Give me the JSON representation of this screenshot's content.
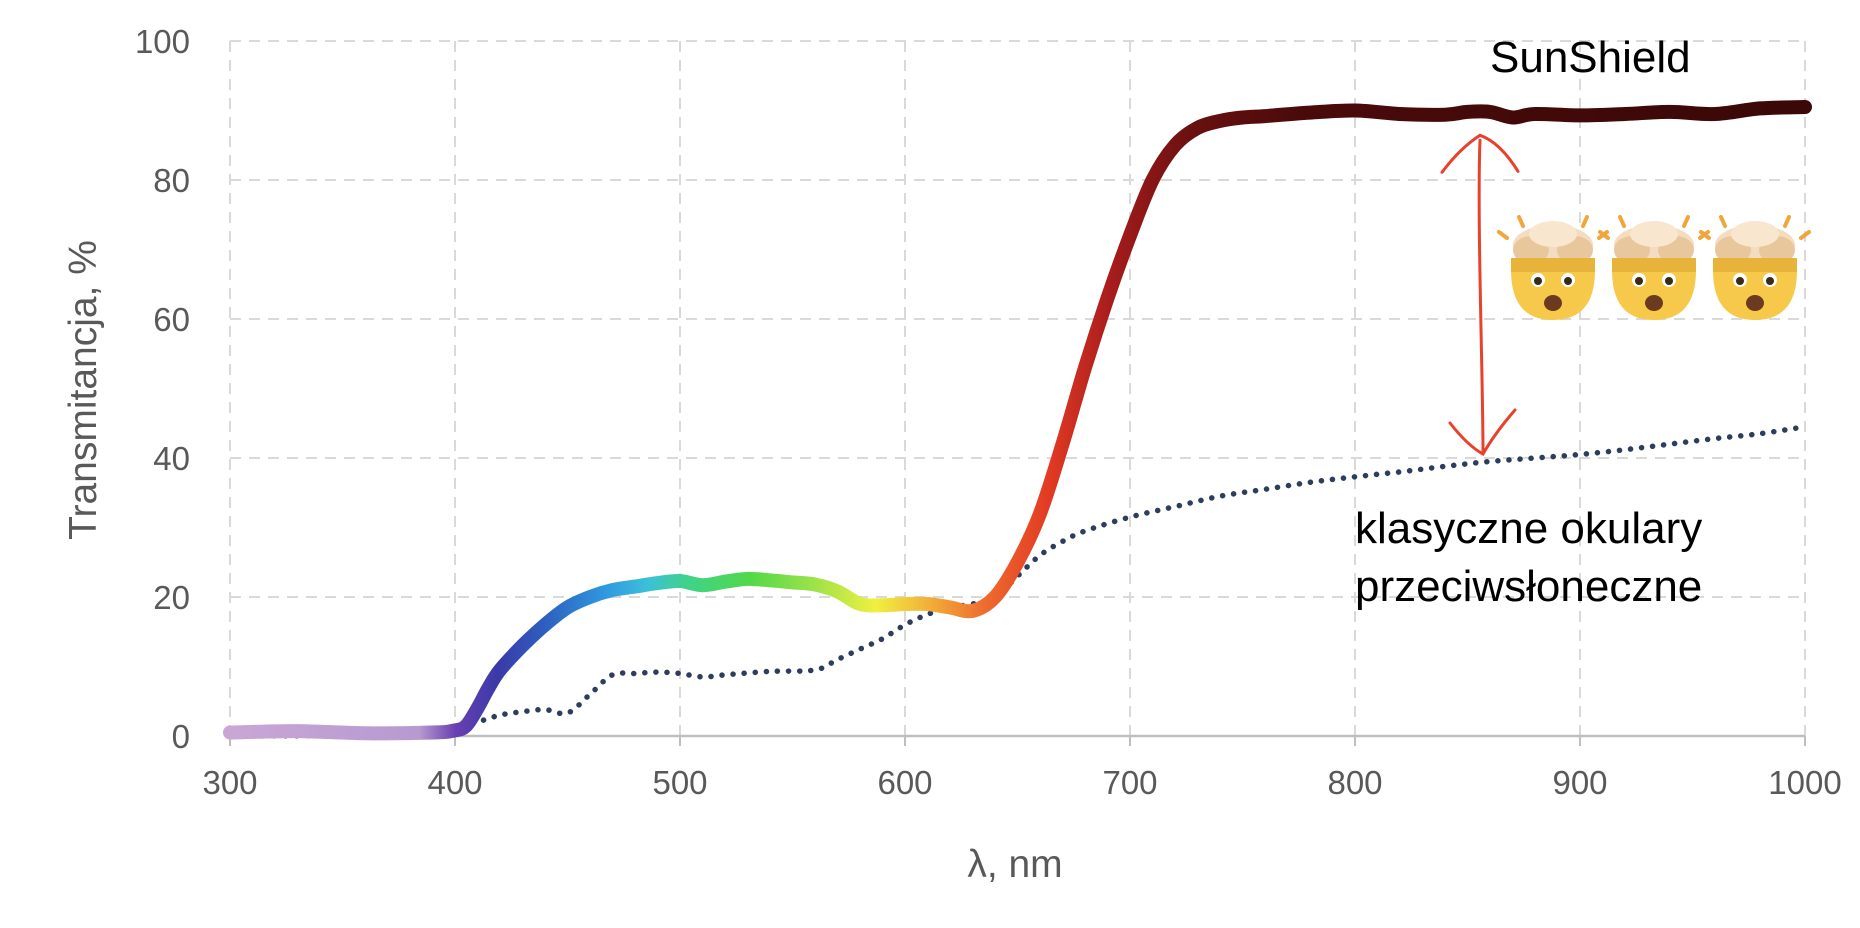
{
  "chart_data": {
    "type": "line",
    "title": "",
    "xlabel": "λ, nm",
    "ylabel": "Transmitancja, %",
    "xlim": [
      300,
      1000
    ],
    "ylim": [
      0,
      100
    ],
    "xticks": [
      300,
      400,
      500,
      600,
      700,
      800,
      900,
      1000
    ],
    "yticks": [
      0,
      20,
      40,
      60,
      80,
      100
    ],
    "grid": true,
    "series": [
      {
        "name": "SunShield",
        "style": "solid-thick-spectral-gradient",
        "x": [
          300,
          330,
          360,
          390,
          400,
          405,
          410,
          415,
          420,
          430,
          440,
          450,
          460,
          470,
          480,
          490,
          500,
          510,
          520,
          530,
          540,
          550,
          560,
          570,
          580,
          590,
          600,
          610,
          620,
          630,
          640,
          650,
          660,
          670,
          680,
          690,
          700,
          710,
          720,
          730,
          740,
          750,
          760,
          780,
          800,
          820,
          840,
          850,
          860,
          870,
          880,
          900,
          920,
          940,
          960,
          980,
          1000
        ],
        "y": [
          0.5,
          0.7,
          0.4,
          0.5,
          0.8,
          1.5,
          4,
          7,
          9.5,
          13,
          16,
          18.5,
          20,
          21,
          21.5,
          22,
          22.3,
          21.7,
          22.2,
          22.6,
          22.4,
          22.1,
          21.8,
          20.8,
          19,
          18.8,
          19,
          19,
          18.5,
          18,
          20,
          25,
          32,
          42,
          53,
          63,
          72,
          80,
          85,
          87.5,
          88.5,
          89,
          89.2,
          89.7,
          90,
          89.5,
          89.4,
          89.8,
          89.8,
          89,
          89.5,
          89.3,
          89.5,
          89.8,
          89.5,
          90.3,
          90.5
        ]
      },
      {
        "name": "klasyczne okulary przeciwsłoneczne",
        "style": "dotted",
        "color": "#2c3e5c",
        "x": [
          300,
          350,
          390,
          400,
          410,
          420,
          430,
          440,
          450,
          460,
          470,
          480,
          490,
          500,
          510,
          520,
          540,
          560,
          570,
          580,
          590,
          600,
          610,
          620,
          630,
          640,
          650,
          660,
          670,
          680,
          700,
          720,
          740,
          760,
          780,
          800,
          820,
          840,
          860,
          880,
          900,
          920,
          940,
          960,
          980,
          1000
        ],
        "y": [
          0,
          0.1,
          0.5,
          1,
          2,
          3,
          3.5,
          3.8,
          3.3,
          6,
          8.8,
          9,
          9.2,
          9,
          8.5,
          8.8,
          9.3,
          9.5,
          11,
          12.5,
          14,
          16,
          17.5,
          18.5,
          19,
          20,
          23,
          26,
          28,
          29.5,
          31.5,
          33,
          34.5,
          35.5,
          36.5,
          37.3,
          38,
          38.8,
          39.5,
          40,
          40.5,
          41.2,
          42,
          42.8,
          43.5,
          44.5
        ]
      }
    ],
    "annotations": [
      {
        "name": "sunshield-label",
        "text": "SunShield"
      },
      {
        "name": "classic-label-line1",
        "text": "klasyczne okulary"
      },
      {
        "name": "classic-label-line2",
        "text": "przeciwsłoneczne"
      },
      {
        "name": "difference-arrow",
        "text": "",
        "color": "#e8412c",
        "from_y": 40,
        "to_y": 86,
        "at_x": 860
      }
    ],
    "colors": {
      "grid": "#d9d9d9",
      "tick_text": "#595959",
      "classic": "#2c3e5c",
      "arrow": "#e8412c",
      "emoji_face": "#f6c94a",
      "emoji_cloud": "#f3dcc0"
    },
    "emoji_icons": [
      "exploding-head-icon",
      "exploding-head-icon",
      "exploding-head-icon"
    ]
  }
}
